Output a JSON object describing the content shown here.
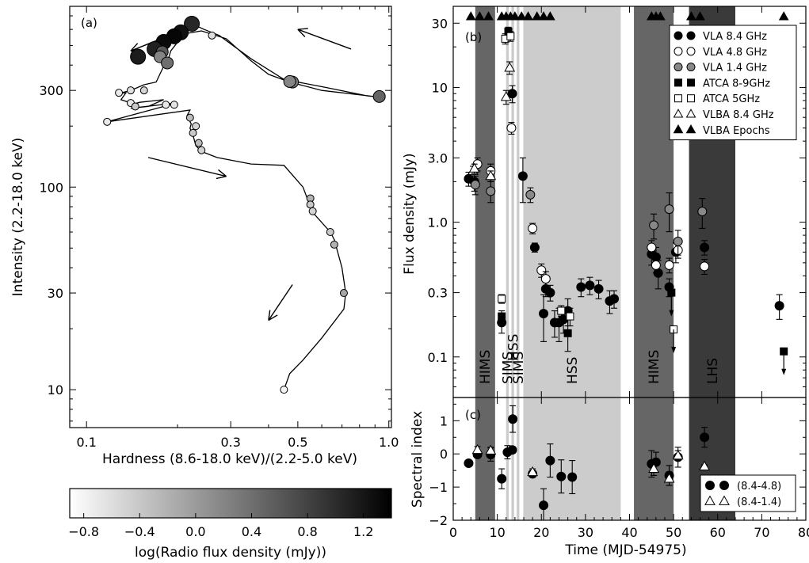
{
  "chart_data": [
    {
      "type": "line",
      "panel_label": "(a)",
      "xlabel": "Hardness (8.6-18.0 keV)/(2.2-5.0 keV)",
      "ylabel": "Intensity (2.2-18.0 keV)",
      "x_scale": "log",
      "y_scale": "log",
      "xlim": [
        0.088,
        1.02
      ],
      "ylim": [
        6.5,
        780
      ],
      "x_ticks": [
        0.1,
        0.3,
        0.5,
        1.0
      ],
      "x_tick_labels": [
        "0.1",
        "0.3",
        "0.5",
        "1.0"
      ],
      "y_ticks": [
        10,
        30,
        100,
        300
      ],
      "y_tick_labels": [
        "10",
        "30",
        "100",
        "300"
      ],
      "track": [
        [
          0.223,
          640
        ],
        [
          0.245,
          600
        ],
        [
          0.275,
          560
        ],
        [
          0.35,
          430
        ],
        [
          0.45,
          340
        ],
        [
          0.62,
          310
        ],
        [
          0.85,
          282
        ],
        [
          0.93,
          278
        ],
        [
          0.6,
          300
        ],
        [
          0.47,
          330
        ],
        [
          0.4,
          360
        ],
        [
          0.35,
          420
        ],
        [
          0.29,
          540
        ],
        [
          0.24,
          590
        ],
        [
          0.21,
          570
        ],
        [
          0.19,
          470
        ],
        [
          0.185,
          410
        ],
        [
          0.19,
          430
        ],
        [
          0.18,
          395
        ],
        [
          0.17,
          330
        ],
        [
          0.155,
          320
        ],
        [
          0.14,
          300
        ],
        [
          0.128,
          290
        ],
        [
          0.135,
          292
        ],
        [
          0.13,
          270
        ],
        [
          0.138,
          262
        ],
        [
          0.14,
          255
        ],
        [
          0.15,
          262
        ],
        [
          0.18,
          270
        ],
        [
          0.16,
          250
        ],
        [
          0.14,
          245
        ],
        [
          0.19,
          258
        ],
        [
          0.195,
          258
        ],
        [
          0.117,
          210
        ],
        [
          0.22,
          240
        ],
        [
          0.215,
          225
        ],
        [
          0.222,
          205
        ],
        [
          0.22,
          195
        ],
        [
          0.225,
          180
        ],
        [
          0.23,
          160
        ],
        [
          0.24,
          150
        ],
        [
          0.27,
          140
        ],
        [
          0.35,
          130
        ],
        [
          0.45,
          128
        ],
        [
          0.52,
          100
        ],
        [
          0.55,
          80
        ],
        [
          0.56,
          75
        ],
        [
          0.64,
          60
        ],
        [
          0.66,
          55
        ],
        [
          0.7,
          40
        ],
        [
          0.72,
          30
        ],
        [
          0.71,
          25
        ],
        [
          0.6,
          18
        ],
        [
          0.52,
          14
        ],
        [
          0.47,
          12
        ],
        [
          0.45,
          10
        ],
        [
          0.44,
          9.7
        ],
        [
          0.46,
          10.2
        ]
      ],
      "points": [
        {
          "x": 0.223,
          "y": 640,
          "c": 1.05
        },
        {
          "x": 0.205,
          "y": 580,
          "c": 1.25
        },
        {
          "x": 0.195,
          "y": 555,
          "c": 1.35
        },
        {
          "x": 0.18,
          "y": 520,
          "c": 1.3
        },
        {
          "x": 0.168,
          "y": 480,
          "c": 1.1
        },
        {
          "x": 0.178,
          "y": 465,
          "c": 0.6
        },
        {
          "x": 0.175,
          "y": 440,
          "c": 0.2
        },
        {
          "x": 0.148,
          "y": 440,
          "c": 1.15
        },
        {
          "x": 0.185,
          "y": 410,
          "c": 0.4
        },
        {
          "x": 0.26,
          "y": 560,
          "c": -0.6
        },
        {
          "x": 0.48,
          "y": 330,
          "c": 0.3
        },
        {
          "x": 0.47,
          "y": 332,
          "c": 0.2
        },
        {
          "x": 0.93,
          "y": 280,
          "c": 0.5
        },
        {
          "x": 0.14,
          "y": 300,
          "c": -0.6
        },
        {
          "x": 0.128,
          "y": 292,
          "c": -0.7
        },
        {
          "x": 0.155,
          "y": 300,
          "c": -0.5
        },
        {
          "x": 0.14,
          "y": 260,
          "c": -0.7
        },
        {
          "x": 0.145,
          "y": 250,
          "c": -0.4
        },
        {
          "x": 0.183,
          "y": 255,
          "c": -0.7
        },
        {
          "x": 0.195,
          "y": 255,
          "c": -0.65
        },
        {
          "x": 0.117,
          "y": 210,
          "c": -0.7
        },
        {
          "x": 0.22,
          "y": 220,
          "c": -0.3
        },
        {
          "x": 0.23,
          "y": 200,
          "c": -0.5
        },
        {
          "x": 0.225,
          "y": 185,
          "c": -0.4
        },
        {
          "x": 0.235,
          "y": 165,
          "c": -0.3
        },
        {
          "x": 0.24,
          "y": 152,
          "c": -0.5
        },
        {
          "x": 0.55,
          "y": 88,
          "c": -0.2
        },
        {
          "x": 0.55,
          "y": 82,
          "c": -0.4
        },
        {
          "x": 0.56,
          "y": 76,
          "c": -0.5
        },
        {
          "x": 0.64,
          "y": 60,
          "c": -0.4
        },
        {
          "x": 0.66,
          "y": 52,
          "c": -0.2
        },
        {
          "x": 0.71,
          "y": 30,
          "c": -0.1
        },
        {
          "x": 0.45,
          "y": 10,
          "c": -0.8
        }
      ],
      "arrows": [
        {
          "from": [
            0.185,
            555
          ],
          "to": [
            0.14,
            470
          ]
        },
        {
          "from": [
            0.75,
            480
          ],
          "to": [
            0.5,
            600
          ]
        },
        {
          "from": [
            0.16,
            140
          ],
          "to": [
            0.29,
            113
          ]
        },
        {
          "from": [
            0.48,
            33
          ],
          "to": [
            0.4,
            22
          ]
        }
      ]
    },
    {
      "type": "colorbar",
      "label": "log(Radio flux density (mJy))",
      "range": [
        -0.9,
        1.4
      ],
      "ticks": [
        -0.8,
        -0.4,
        0.0,
        0.4,
        0.8,
        1.2
      ],
      "tick_labels": [
        "−0.8",
        "−0.4",
        "0.0",
        "0.4",
        "0.8",
        "1.2"
      ]
    },
    {
      "type": "scatter",
      "panel_label": "(b)",
      "xlabel": "",
      "ylabel": "Flux density (mJy)",
      "y_scale": "log",
      "xlim": [
        0,
        80
      ],
      "ylim": [
        0.05,
        40
      ],
      "y_ticks": [
        0.1,
        0.3,
        1.0,
        3.0,
        10,
        30
      ],
      "y_tick_labels": [
        "0.1",
        "0.3",
        "1.0",
        "3.0",
        "10",
        "30"
      ],
      "x_ticks": [
        0,
        10,
        20,
        30,
        40,
        50,
        60,
        70,
        80
      ],
      "state_bands": [
        {
          "name": "HIMS",
          "x0": 5,
          "x1": 9.5,
          "color": "#666666"
        },
        {
          "name": "SIMS",
          "x0": 12,
          "x1": 12.6,
          "color": "#cccccc"
        },
        {
          "name": "HSS",
          "x0": 13.2,
          "x1": 13.8,
          "color": "#cccccc"
        },
        {
          "name": "SIMS",
          "x0": 14.4,
          "x1": 15,
          "color": "#cccccc"
        },
        {
          "name": "HSS",
          "x0": 15.9,
          "x1": 38,
          "color": "#cccccc"
        },
        {
          "name": "HIMS",
          "x0": 41,
          "x1": 50,
          "color": "#666666"
        },
        {
          "name": "LHS",
          "x0": 53.5,
          "x1": 64,
          "color": "#3a3a3a"
        }
      ],
      "band_labels": [
        {
          "text": "HIMS",
          "x": 7.2,
          "y": 0.035
        },
        {
          "text": "SIMS",
          "x": 12.3,
          "y": 0.035
        },
        {
          "text": "HSS",
          "x": 13.6,
          "y": 0.06
        },
        {
          "text": "SIMS",
          "x": 14.7,
          "y": 0.035
        },
        {
          "text": "HSS",
          "x": 27,
          "y": 0.035
        },
        {
          "text": "HIMS",
          "x": 45.5,
          "y": 0.035
        },
        {
          "text": "LHS",
          "x": 58.8,
          "y": 0.035
        }
      ],
      "vlba_epochs": [
        4,
        6,
        8,
        11,
        12,
        13,
        14,
        15.5,
        17,
        19,
        20.5,
        22,
        45,
        46,
        47,
        54,
        56,
        75
      ],
      "series": [
        {
          "name": "VLA 8.4 GHz",
          "marker": "circle",
          "fill": "#000000",
          "points": [
            [
              3.5,
              2.1,
              0.25
            ],
            [
              4.8,
              2.0,
              0.3
            ],
            [
              11,
              0.18,
              0.03
            ],
            [
              13.4,
              9.0,
              1.3
            ],
            [
              15.8,
              2.2,
              0.8
            ],
            [
              18.5,
              0.65,
              0.05
            ],
            [
              21,
              0.32,
              0.04
            ],
            [
              22,
              0.3,
              0.04
            ],
            [
              20.5,
              0.21,
              0.08
            ],
            [
              23,
              0.18,
              0.04
            ],
            [
              24,
              0.18,
              0.05
            ],
            [
              25,
              0.19,
              0.04
            ],
            [
              26,
              0.22,
              0.05
            ],
            [
              29,
              0.33,
              0.05
            ],
            [
              31,
              0.34,
              0.05
            ],
            [
              33,
              0.32,
              0.05
            ],
            [
              35.5,
              0.26,
              0.05
            ],
            [
              36.5,
              0.27,
              0.04
            ],
            [
              45,
              0.58,
              0.1
            ],
            [
              46,
              0.55,
              0.1
            ],
            [
              46.5,
              0.42,
              0.1
            ],
            [
              49,
              0.33,
              0.05
            ],
            [
              50.5,
              0.6,
              0.1
            ],
            [
              57,
              0.65,
              0.08
            ],
            [
              74,
              0.24,
              0.05
            ]
          ]
        },
        {
          "name": "VLA 4.8 GHz",
          "marker": "circle",
          "fill": "#ffffff",
          "points": [
            [
              5.5,
              2.7,
              0.3
            ],
            [
              8.5,
              2.4,
              0.3
            ],
            [
              13.2,
              5.0,
              0.5
            ],
            [
              18,
              0.9,
              0.08
            ],
            [
              20,
              0.44,
              0.05
            ],
            [
              21,
              0.38,
              0.05
            ],
            [
              45,
              0.65,
              0.08
            ],
            [
              46,
              0.48,
              0.06
            ],
            [
              49,
              0.48,
              0.06
            ],
            [
              51,
              0.62,
              0.08
            ],
            [
              57,
              0.47,
              0.06
            ]
          ]
        },
        {
          "name": "VLA 1.4 GHz",
          "marker": "circle",
          "fill": "#888888",
          "points": [
            [
              5,
              1.9,
              0.3
            ],
            [
              8.5,
              1.7,
              0.3
            ],
            [
              17.5,
              1.6,
              0.2
            ],
            [
              45.5,
              0.95,
              0.2
            ],
            [
              49,
              1.25,
              0.4
            ],
            [
              51,
              0.72,
              0.15
            ],
            [
              56.5,
              1.2,
              0.3
            ]
          ]
        },
        {
          "name": "ATCA 8-9GHz",
          "marker": "square",
          "fill": "#000000",
          "points": [
            [
              11,
              0.2,
              0.02
            ],
            [
              12.5,
              26,
              2
            ],
            [
              49.5,
              0.3,
              0
            ],
            [
              75,
              0.11,
              0
            ]
          ]
        },
        {
          "name": "ATCA 5GHz",
          "marker": "square",
          "fill": "#ffffff",
          "points": [
            [
              11,
              0.27,
              0.02
            ],
            [
              11.8,
              23,
              2
            ],
            [
              13,
              24,
              2
            ],
            [
              24.5,
              0.22,
              0.02
            ],
            [
              50,
              0.16,
              0
            ]
          ]
        },
        {
          "name": "VLBA 8.4 GHz",
          "marker": "triangle",
          "fill": "#ffffff",
          "points": [
            [
              4.5,
              2.4,
              0.2
            ],
            [
              12,
              8.5,
              1
            ],
            [
              12.8,
              14,
              1.5
            ],
            [
              8.5,
              2.2,
              0.2
            ],
            [
              4.8,
              2.5,
              0.2
            ]
          ]
        },
        {
          "name": "VLBA Epochs",
          "marker": "triangle",
          "fill": "#000000",
          "points": []
        }
      ],
      "extra_points": [
        {
          "x": 26,
          "y": 0.15,
          "err": 0.04,
          "marker": "square",
          "fill": "#000000"
        },
        {
          "x": 26.5,
          "y": 0.2,
          "err": 0.03,
          "marker": "square",
          "fill": "#ffffff"
        }
      ],
      "upper_limits": [
        [
          49.5,
          0.3
        ],
        [
          50,
          0.16
        ],
        [
          75,
          0.11
        ]
      ],
      "legend": {
        "position": "top-right"
      }
    },
    {
      "type": "scatter",
      "panel_label": "(c)",
      "xlabel": "Time (MJD-54975)",
      "ylabel": "Spectral index",
      "xlim": [
        0,
        80
      ],
      "ylim": [
        -2,
        1.7
      ],
      "y_ticks": [
        -2,
        -1,
        0,
        1
      ],
      "y_tick_labels": [
        "−2",
        "−1",
        "0",
        "1"
      ],
      "x_ticks": [
        0,
        10,
        20,
        30,
        40,
        50,
        60,
        70,
        80
      ],
      "x_tick_labels": [
        "0",
        "10",
        "20",
        "30",
        "40",
        "50",
        "60",
        "70",
        "80"
      ],
      "series": [
        {
          "name": "(8.4-4.8)",
          "marker": "circle",
          "fill": "#000000",
          "points": [
            [
              3.5,
              -0.28,
              0.05
            ],
            [
              5.5,
              -0.02,
              0.1
            ],
            [
              8.5,
              -0.02,
              0.2
            ],
            [
              11,
              -0.75,
              0.3
            ],
            [
              12.3,
              0.05,
              0.2
            ],
            [
              13.4,
              0.12,
              0.1
            ],
            [
              13.5,
              1.05,
              0.4
            ],
            [
              18,
              -0.6,
              0.1
            ],
            [
              20.5,
              -1.55,
              0.5
            ],
            [
              22,
              -0.2,
              0.5
            ],
            [
              24.5,
              -0.68,
              0.5
            ],
            [
              27,
              -0.7,
              0.5
            ],
            [
              45,
              -0.3,
              0.4
            ],
            [
              46,
              -0.25,
              0.3
            ],
            [
              49,
              -0.65,
              0.3
            ],
            [
              51,
              -0.1,
              0.3
            ],
            [
              57,
              0.5,
              0.3
            ]
          ]
        },
        {
          "name": "(8.4-1.4)",
          "marker": "triangle",
          "fill": "#ffffff",
          "points": [
            [
              5.5,
              0.12,
              0.1
            ],
            [
              8.5,
              0.1,
              0.1
            ],
            [
              18,
              -0.55,
              0.1
            ],
            [
              45.5,
              -0.45,
              0.2
            ],
            [
              49,
              -0.75,
              0.2
            ],
            [
              51,
              -0.05,
              0.15
            ],
            [
              57,
              -0.38,
              0.05
            ]
          ]
        }
      ],
      "legend": {
        "position": "bottom-right"
      }
    }
  ]
}
